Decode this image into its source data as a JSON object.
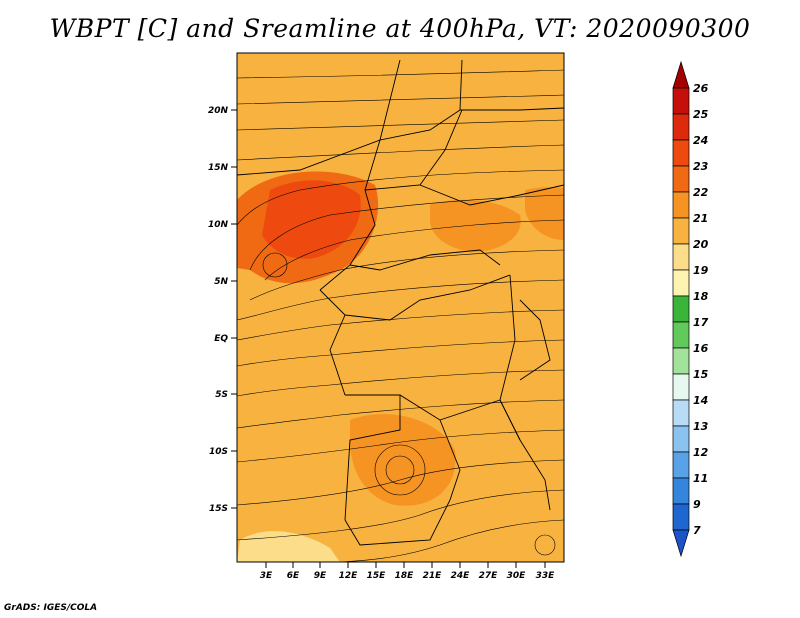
{
  "title": "WBPT [C] and Sreamline at 400hPa, VT: 2020090300",
  "credit": "GrADS: IGES/COLA",
  "map": {
    "lat_labels": [
      "20N",
      "15N",
      "10N",
      "5N",
      "EQ",
      "5S",
      "10S",
      "15S"
    ],
    "lon_labels": [
      "3E",
      "6E",
      "9E",
      "12E",
      "15E",
      "18E",
      "21E",
      "24E",
      "27E",
      "30E",
      "33E"
    ],
    "background_color": "#f7b240"
  },
  "colorbar": {
    "labels": [
      "26",
      "25",
      "24",
      "23",
      "22",
      "21",
      "20",
      "19",
      "18",
      "17",
      "16",
      "15",
      "14",
      "13",
      "12",
      "11",
      "9",
      "7"
    ],
    "colors": [
      "#a50000",
      "#c40f0a",
      "#dd2a0d",
      "#ee4a10",
      "#f06a14",
      "#f59323",
      "#f7b240",
      "#fcdd8a",
      "#fdf4b2",
      "#3bb539",
      "#62c95b",
      "#a3e29a",
      "#e6f8f0",
      "#b9dcf6",
      "#8ac2f0",
      "#5aa2e8",
      "#3585dc",
      "#1f66d1",
      "#1b54c8"
    ]
  }
}
